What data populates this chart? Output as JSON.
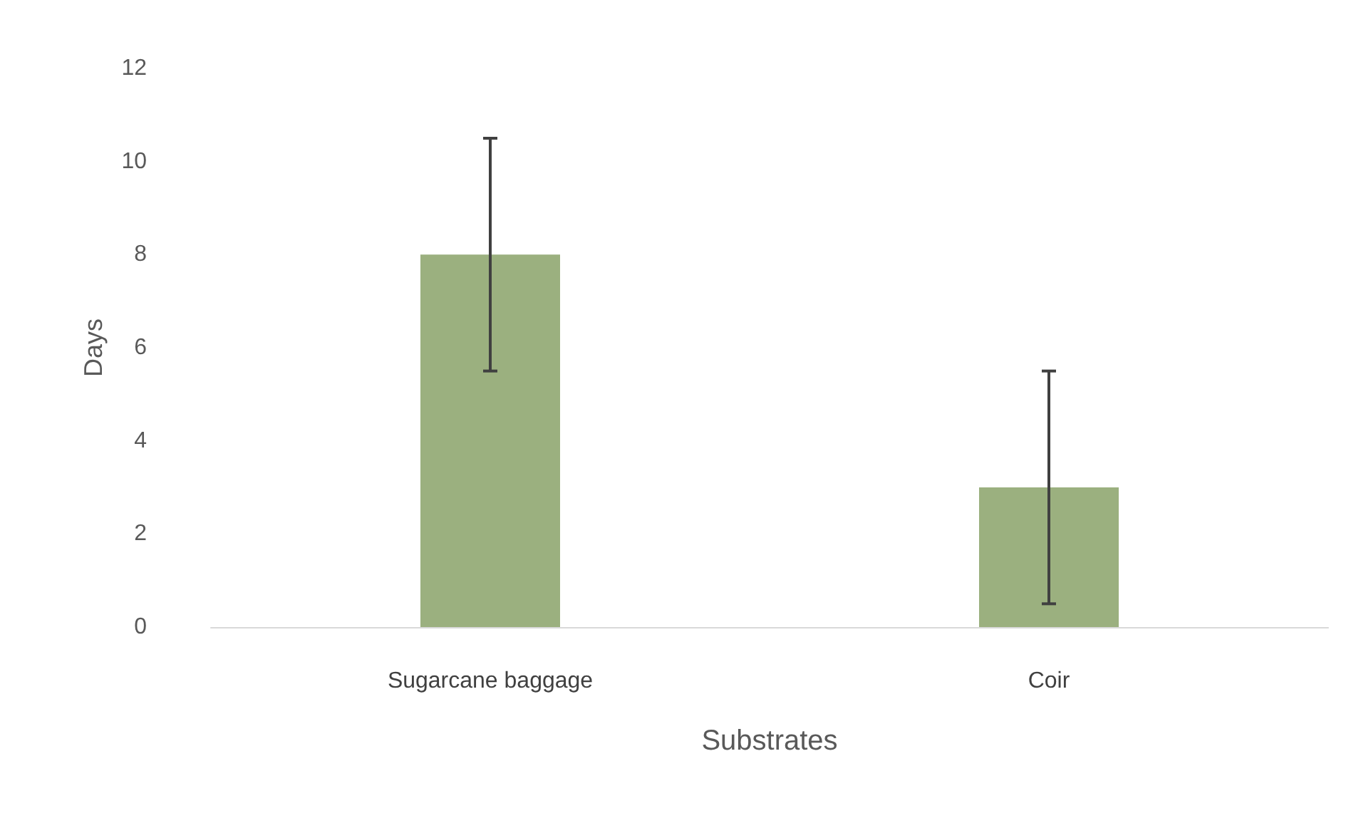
{
  "chart_data": {
    "type": "bar",
    "xlabel": "Substrates",
    "ylabel": "Days",
    "categories": [
      "Sugarcane baggage",
      "Coir"
    ],
    "values": [
      8,
      3
    ],
    "errors": [
      2.5,
      2.5
    ],
    "color": "#9bb07f",
    "ylim": [
      0,
      12
    ],
    "yticks": [
      0,
      2,
      4,
      6,
      8,
      10,
      12
    ],
    "grid": false
  }
}
